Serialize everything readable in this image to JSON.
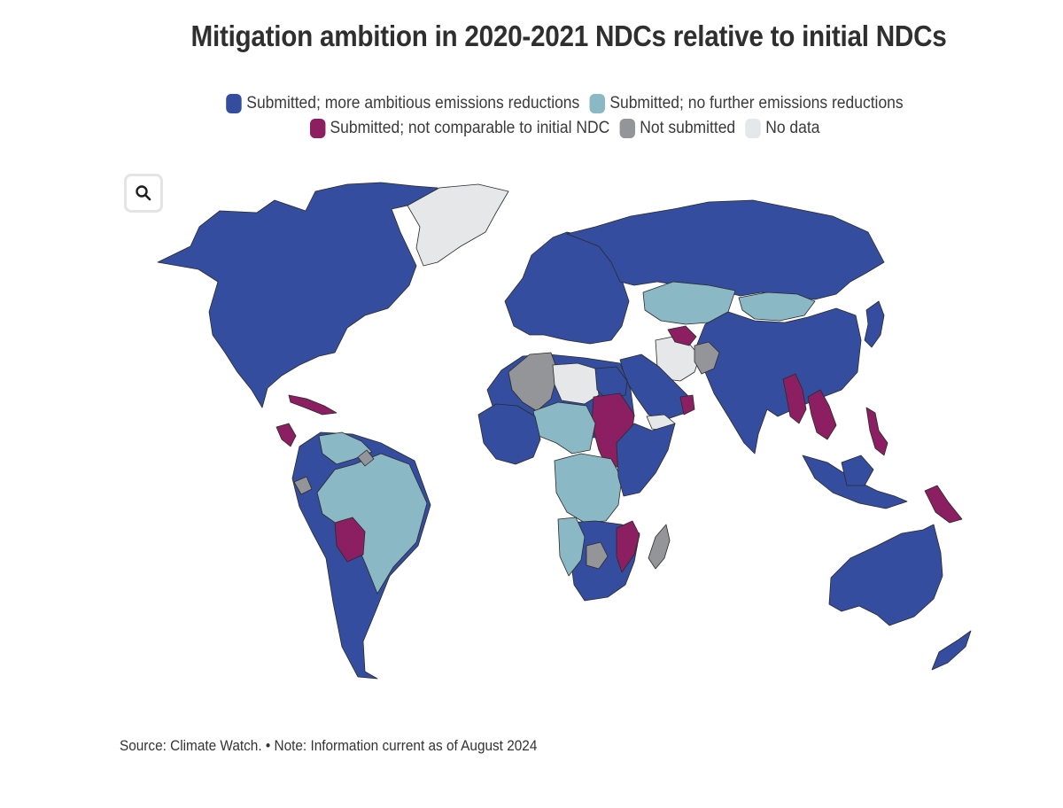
{
  "title": "Mitigation ambition in 2020-2021 NDCs relative to initial NDCs",
  "legend": [
    {
      "key": "more",
      "label": "Submitted; more ambitious emissions reductions",
      "color": "#344d9e"
    },
    {
      "key": "nofurther",
      "label": "Submitted; no further emissions reductions",
      "color": "#8ab8c4"
    },
    {
      "key": "notcomparable",
      "label": "Submitted; not comparable to initial NDC",
      "color": "#8c1f62"
    },
    {
      "key": "notsubmitted",
      "label": "Not submitted",
      "color": "#939598"
    },
    {
      "key": "nodata",
      "label": "No data",
      "color": "#e6e7e8"
    }
  ],
  "zoom": {
    "icon": "search-icon"
  },
  "map": {
    "regions": [
      {
        "name": "north-america",
        "category": "more"
      },
      {
        "name": "greenland",
        "category": "nodata"
      },
      {
        "name": "cuba",
        "category": "notcomparable"
      },
      {
        "name": "central-america-central",
        "category": "notcomparable"
      },
      {
        "name": "south-america",
        "category": "more"
      },
      {
        "name": "brazil",
        "category": "nofurther"
      },
      {
        "name": "venezuela",
        "category": "nofurther"
      },
      {
        "name": "bolivia",
        "category": "notcomparable"
      },
      {
        "name": "ecuador",
        "category": "notsubmitted"
      },
      {
        "name": "suriname",
        "category": "notsubmitted"
      },
      {
        "name": "europe",
        "category": "more"
      },
      {
        "name": "russia",
        "category": "more"
      },
      {
        "name": "kazakhstan",
        "category": "nofurther"
      },
      {
        "name": "mongolia",
        "category": "nofurther"
      },
      {
        "name": "china-india",
        "category": "more"
      },
      {
        "name": "iran",
        "category": "nodata"
      },
      {
        "name": "afghanistan",
        "category": "notsubmitted"
      },
      {
        "name": "turkmenistan",
        "category": "notcomparable"
      },
      {
        "name": "myanmar",
        "category": "notcomparable"
      },
      {
        "name": "vietnam",
        "category": "notcomparable"
      },
      {
        "name": "philippines",
        "category": "notcomparable"
      },
      {
        "name": "indonesia",
        "category": "more"
      },
      {
        "name": "papua-new-guinea",
        "category": "notcomparable"
      },
      {
        "name": "japan",
        "category": "more"
      },
      {
        "name": "arabian-peninsula",
        "category": "more"
      },
      {
        "name": "yemen",
        "category": "nodata"
      },
      {
        "name": "oman",
        "category": "notcomparable"
      },
      {
        "name": "north-africa",
        "category": "more"
      },
      {
        "name": "algeria",
        "category": "notsubmitted"
      },
      {
        "name": "libya",
        "category": "nodata"
      },
      {
        "name": "egypt",
        "category": "more"
      },
      {
        "name": "sudan",
        "category": "notcomparable"
      },
      {
        "name": "chad-niger",
        "category": "nofurther"
      },
      {
        "name": "west-africa",
        "category": "more"
      },
      {
        "name": "central-africa",
        "category": "nofurther"
      },
      {
        "name": "east-africa",
        "category": "more"
      },
      {
        "name": "southern-africa",
        "category": "more"
      },
      {
        "name": "mozambique",
        "category": "notcomparable"
      },
      {
        "name": "zimbabwe",
        "category": "notsubmitted"
      },
      {
        "name": "angola-namibia",
        "category": "nofurther"
      },
      {
        "name": "madagascar",
        "category": "notsubmitted"
      },
      {
        "name": "australia",
        "category": "more"
      },
      {
        "name": "new-zealand",
        "category": "more"
      }
    ]
  },
  "source": "Source: Climate Watch. • Note: Information current as of August 2024"
}
